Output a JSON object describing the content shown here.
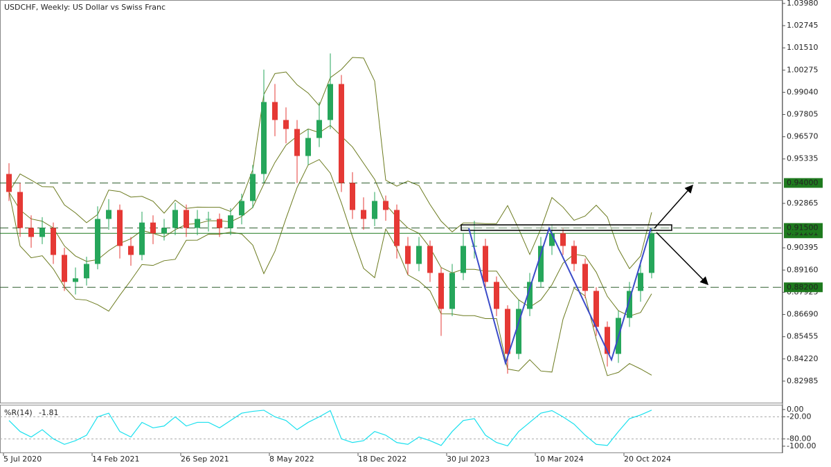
{
  "chart_data": [
    {
      "type": "candlestick",
      "title": "USDCHF, Weekly:  US Dollar vs Swiss Franc",
      "categories": [
        "5 Jul 2020",
        null,
        null,
        null,
        null,
        null,
        null,
        null,
        "14 Feb 2021",
        null,
        null,
        null,
        null,
        null,
        null,
        null,
        "26 Sep 2021",
        null,
        null,
        null,
        null,
        null,
        null,
        null,
        "8 May 2022",
        null,
        null,
        null,
        null,
        null,
        null,
        null,
        "18 Dec 2022",
        null,
        null,
        null,
        null,
        null,
        null,
        null,
        "30 Jul 2023",
        null,
        null,
        null,
        null,
        null,
        null,
        null,
        "10 Mar 2024",
        null,
        null,
        null,
        null,
        null,
        null,
        null,
        "20 Oct 2024",
        null,
        null
      ],
      "open": [
        0.945,
        0.935,
        0.915,
        0.91,
        0.915,
        0.9,
        0.885,
        0.887,
        0.895,
        0.92,
        0.925,
        0.905,
        0.9,
        0.918,
        0.912,
        0.915,
        0.925,
        0.915,
        0.92,
        0.92,
        0.915,
        0.922,
        0.93,
        0.945,
        0.985,
        0.975,
        0.97,
        0.955,
        0.965,
        0.975,
        0.995,
        0.94,
        0.925,
        0.92,
        0.93,
        0.925,
        0.905,
        0.895,
        0.905,
        0.89,
        0.87,
        0.89,
        0.905,
        0.905,
        0.885,
        0.87,
        0.845,
        0.87,
        0.885,
        0.905,
        0.912,
        0.905,
        0.895,
        0.88,
        0.86,
        0.845,
        0.865,
        0.88,
        0.89
      ],
      "high": [
        0.951,
        0.94,
        0.922,
        0.921,
        0.918,
        0.904,
        0.893,
        0.899,
        0.927,
        0.931,
        0.928,
        0.91,
        0.924,
        0.922,
        0.92,
        0.929,
        0.928,
        0.925,
        0.924,
        0.923,
        0.926,
        0.934,
        0.95,
        1.003,
        0.995,
        0.982,
        0.975,
        0.97,
        0.985,
        1.012,
        1.0,
        0.946,
        0.932,
        0.935,
        0.933,
        0.928,
        0.91,
        0.91,
        0.908,
        0.893,
        0.895,
        0.912,
        0.919,
        0.909,
        0.888,
        0.872,
        0.875,
        0.89,
        0.91,
        0.917,
        0.915,
        0.908,
        0.898,
        0.882,
        0.863,
        0.869,
        0.885,
        0.897,
        0.915
      ],
      "low": [
        0.93,
        0.91,
        0.904,
        0.906,
        0.895,
        0.88,
        0.878,
        0.883,
        0.892,
        0.914,
        0.898,
        0.894,
        0.897,
        0.906,
        0.908,
        0.911,
        0.91,
        0.911,
        0.913,
        0.91,
        0.911,
        0.917,
        0.926,
        0.94,
        0.966,
        0.962,
        0.94,
        0.95,
        0.96,
        0.97,
        0.935,
        0.92,
        0.914,
        0.916,
        0.919,
        0.898,
        0.889,
        0.891,
        0.885,
        0.855,
        0.866,
        0.886,
        0.898,
        0.88,
        0.866,
        0.834,
        0.842,
        0.866,
        0.882,
        0.9,
        0.9,
        0.891,
        0.876,
        0.855,
        0.838,
        0.84,
        0.86,
        0.874,
        0.887
      ],
      "close": [
        0.935,
        0.915,
        0.91,
        0.915,
        0.9,
        0.885,
        0.887,
        0.895,
        0.92,
        0.925,
        0.905,
        0.9,
        0.918,
        0.912,
        0.915,
        0.925,
        0.915,
        0.92,
        0.92,
        0.915,
        0.922,
        0.93,
        0.945,
        0.985,
        0.975,
        0.97,
        0.955,
        0.965,
        0.975,
        0.995,
        0.94,
        0.925,
        0.92,
        0.93,
        0.925,
        0.905,
        0.895,
        0.905,
        0.89,
        0.87,
        0.89,
        0.905,
        0.905,
        0.885,
        0.87,
        0.845,
        0.87,
        0.885,
        0.905,
        0.912,
        0.905,
        0.895,
        0.88,
        0.86,
        0.845,
        0.865,
        0.88,
        0.89,
        0.912
      ],
      "up_color": "#26a65b",
      "down_color": "#e53935",
      "ylim": [
        0.8175,
        1.0417
      ],
      "yticks": [
        {
          "value": 1.0398,
          "label": "1.03980"
        },
        {
          "value": 1.02745,
          "label": "1.02745"
        },
        {
          "value": 1.0151,
          "label": "1.01510"
        },
        {
          "value": 1.00275,
          "label": "1.00275"
        },
        {
          "value": 0.9904,
          "label": "0.99040"
        },
        {
          "value": 0.97805,
          "label": "0.97805"
        },
        {
          "value": 0.9657,
          "label": "0.96570"
        },
        {
          "value": 0.95335,
          "label": "0.95335"
        },
        {
          "value": 0.92865,
          "label": "0.92865"
        },
        {
          "value": 0.90395,
          "label": "0.90395"
        },
        {
          "value": 0.8916,
          "label": "0.89160"
        },
        {
          "value": 0.87925,
          "label": "0.87925"
        },
        {
          "value": 0.8669,
          "label": "0.86690"
        },
        {
          "value": 0.85455,
          "label": "0.85455"
        },
        {
          "value": 0.8422,
          "label": "0.84220"
        },
        {
          "value": 0.82985,
          "label": "0.82985"
        }
      ],
      "levels": [
        {
          "value": 0.94,
          "label": "0.94000"
        },
        {
          "value": 0.915,
          "label": "0.91500"
        },
        {
          "value": 0.882,
          "label": "0.88200"
        }
      ],
      "level_color": "#1e7a1e",
      "current_price": {
        "value": 0.91201,
        "label": "0.91201"
      }
    },
    {
      "type": "line",
      "title": "%R(14)",
      "color": "#19e0ee",
      "values": [
        -30,
        -60,
        -75,
        -55,
        -80,
        -95,
        -85,
        -70,
        -20,
        -10,
        -60,
        -75,
        -35,
        -50,
        -45,
        -20,
        -45,
        -35,
        -35,
        -50,
        -30,
        -10,
        -5,
        -2,
        -20,
        -30,
        -55,
        -35,
        -20,
        -3,
        -80,
        -90,
        -85,
        -60,
        -70,
        -90,
        -95,
        -75,
        -85,
        -98,
        -60,
        -30,
        -25,
        -70,
        -90,
        -99,
        -60,
        -35,
        -10,
        -3,
        -20,
        -40,
        -70,
        -95,
        -98,
        -60,
        -25,
        -15,
        -1.81
      ],
      "ylim": [
        -119,
        13
      ],
      "yticks": [
        {
          "value": 0,
          "label": "0.00"
        },
        {
          "value": -20,
          "label": "-20.00"
        },
        {
          "value": -80,
          "label": "-80.00"
        },
        {
          "value": -100,
          "label": "-100.00"
        }
      ]
    }
  ]
}
